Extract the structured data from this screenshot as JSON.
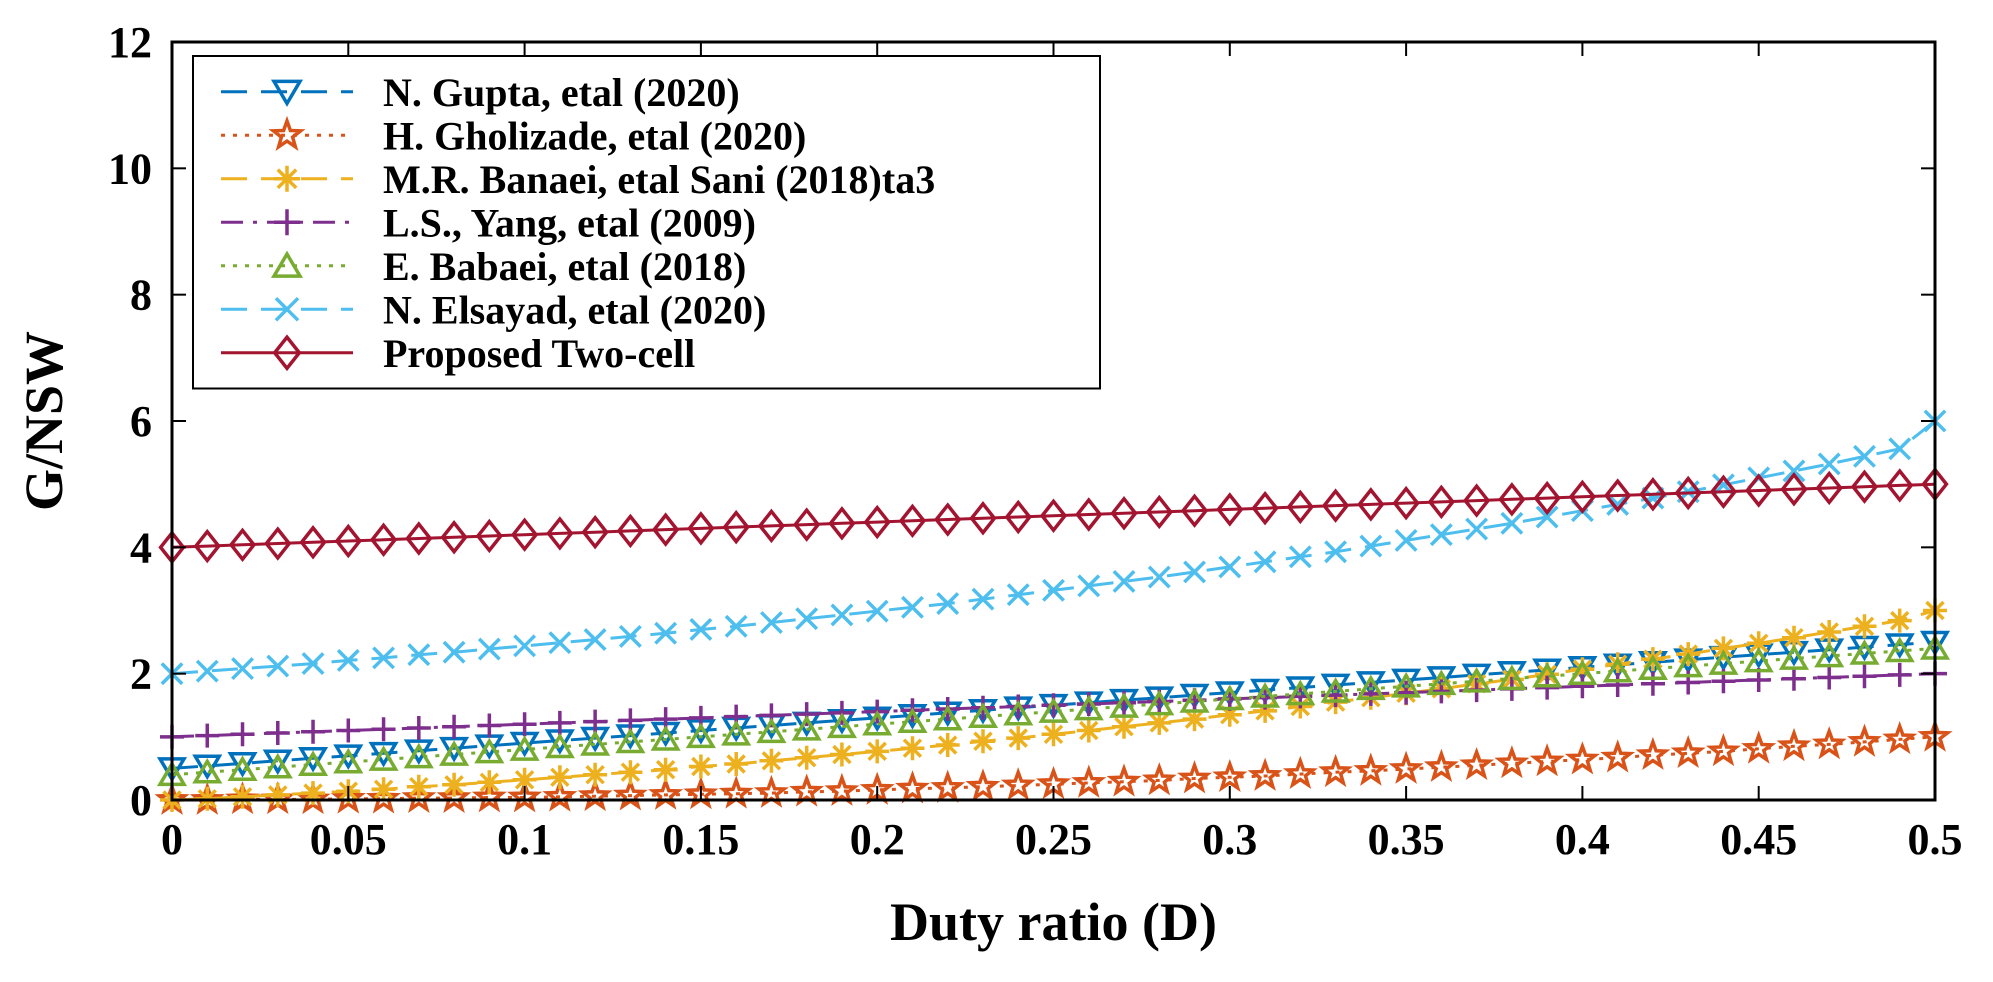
{
  "chart_data": {
    "type": "line",
    "title": "",
    "xlabel": "Duty ratio (D)",
    "ylabel": "G/NSW",
    "xlim": [
      0,
      0.5
    ],
    "ylim": [
      0,
      12
    ],
    "x_ticks": [
      "0",
      "0.05",
      "0.1",
      "0.15",
      "0.2",
      "0.25",
      "0.3",
      "0.35",
      "0.4",
      "0.45",
      "0.5"
    ],
    "y_ticks": [
      "0",
      "2",
      "4",
      "6",
      "8",
      "10",
      "12"
    ],
    "grid": false,
    "legend_position": "top-left",
    "x": [
      0,
      0.01,
      0.02,
      0.03,
      0.04,
      0.05,
      0.06,
      0.07,
      0.08,
      0.09,
      0.1,
      0.11,
      0.12,
      0.13,
      0.14,
      0.15,
      0.16,
      0.17,
      0.18,
      0.19,
      0.2,
      0.21,
      0.22,
      0.23,
      0.24,
      0.25,
      0.26,
      0.27,
      0.28,
      0.29,
      0.3,
      0.31,
      0.32,
      0.33,
      0.34,
      0.35,
      0.36,
      0.37,
      0.38,
      0.39,
      0.4,
      0.41,
      0.42,
      0.43,
      0.44,
      0.45,
      0.46,
      0.47,
      0.48,
      0.49,
      0.5
    ],
    "series": [
      {
        "name": "N. Gupta, etal (2020)",
        "color": "#0072BD",
        "linestyle": "dashed",
        "marker": "triangle-down",
        "values": [
          0.5,
          0.54,
          0.58,
          0.62,
          0.66,
          0.7,
          0.74,
          0.78,
          0.82,
          0.86,
          0.9,
          0.94,
          0.98,
          1.02,
          1.06,
          1.1,
          1.14,
          1.18,
          1.22,
          1.26,
          1.3,
          1.34,
          1.38,
          1.42,
          1.46,
          1.5,
          1.54,
          1.58,
          1.62,
          1.66,
          1.7,
          1.74,
          1.78,
          1.82,
          1.86,
          1.9,
          1.94,
          1.98,
          2.02,
          2.06,
          2.1,
          2.14,
          2.18,
          2.22,
          2.26,
          2.3,
          2.34,
          2.38,
          2.42,
          2.46,
          2.5
        ]
      },
      {
        "name": "H. Gholizade, etal (2020)",
        "color": "#D95319",
        "linestyle": "dotted",
        "marker": "star",
        "values": [
          0,
          0,
          0.01,
          0.01,
          0.01,
          0.02,
          0.02,
          0.03,
          0.03,
          0.04,
          0.04,
          0.05,
          0.06,
          0.07,
          0.08,
          0.09,
          0.1,
          0.11,
          0.13,
          0.14,
          0.16,
          0.18,
          0.19,
          0.21,
          0.23,
          0.25,
          0.27,
          0.29,
          0.31,
          0.34,
          0.36,
          0.38,
          0.41,
          0.44,
          0.46,
          0.49,
          0.52,
          0.55,
          0.58,
          0.61,
          0.64,
          0.67,
          0.71,
          0.74,
          0.77,
          0.81,
          0.85,
          0.88,
          0.92,
          0.96,
          1.0
        ]
      },
      {
        "name": "M.R. Banaei, etal Sani (2018)ta3",
        "color": "#EDB120",
        "linestyle": "dashed",
        "marker": "asterisk",
        "values": [
          0.0,
          0.02,
          0.05,
          0.08,
          0.11,
          0.14,
          0.17,
          0.21,
          0.24,
          0.28,
          0.32,
          0.36,
          0.4,
          0.44,
          0.48,
          0.53,
          0.57,
          0.62,
          0.67,
          0.72,
          0.77,
          0.82,
          0.87,
          0.93,
          0.98,
          1.04,
          1.1,
          1.16,
          1.22,
          1.28,
          1.35,
          1.41,
          1.48,
          1.55,
          1.62,
          1.69,
          1.76,
          1.84,
          1.91,
          1.99,
          2.07,
          2.15,
          2.23,
          2.31,
          2.4,
          2.48,
          2.57,
          2.66,
          2.75,
          2.84,
          3.0
        ]
      },
      {
        "name": "L.S., Yang, etal (2009)",
        "color": "#7E2F8E",
        "linestyle": "dashdot",
        "marker": "plus",
        "values": [
          1.0,
          1.02,
          1.04,
          1.06,
          1.08,
          1.1,
          1.12,
          1.14,
          1.16,
          1.18,
          1.2,
          1.22,
          1.24,
          1.26,
          1.28,
          1.3,
          1.32,
          1.34,
          1.36,
          1.38,
          1.4,
          1.42,
          1.44,
          1.46,
          1.48,
          1.5,
          1.52,
          1.54,
          1.56,
          1.58,
          1.6,
          1.62,
          1.64,
          1.66,
          1.68,
          1.7,
          1.72,
          1.74,
          1.76,
          1.78,
          1.8,
          1.82,
          1.84,
          1.86,
          1.88,
          1.9,
          1.92,
          1.94,
          1.96,
          1.98,
          2.0
        ]
      },
      {
        "name": "E. Babaei, etal (2018)",
        "color": "#77AC30",
        "linestyle": "dotted",
        "marker": "triangle-up",
        "values": [
          0.4,
          0.44,
          0.48,
          0.52,
          0.56,
          0.6,
          0.64,
          0.68,
          0.72,
          0.76,
          0.8,
          0.84,
          0.88,
          0.92,
          0.96,
          1.0,
          1.04,
          1.08,
          1.12,
          1.16,
          1.2,
          1.24,
          1.28,
          1.32,
          1.36,
          1.4,
          1.44,
          1.48,
          1.52,
          1.56,
          1.6,
          1.64,
          1.68,
          1.72,
          1.76,
          1.8,
          1.84,
          1.88,
          1.92,
          1.96,
          2.0,
          2.04,
          2.08,
          2.12,
          2.16,
          2.2,
          2.24,
          2.28,
          2.32,
          2.36,
          2.4
        ]
      },
      {
        "name": "N. Elsayad, etal (2020)",
        "color": "#4DBEEE",
        "linestyle": "dashed",
        "marker": "x",
        "values": [
          2.0,
          2.04,
          2.08,
          2.12,
          2.16,
          2.21,
          2.25,
          2.3,
          2.34,
          2.39,
          2.44,
          2.49,
          2.54,
          2.59,
          2.64,
          2.7,
          2.75,
          2.81,
          2.87,
          2.93,
          2.99,
          3.05,
          3.11,
          3.18,
          3.25,
          3.32,
          3.39,
          3.46,
          3.53,
          3.61,
          3.69,
          3.77,
          3.85,
          3.93,
          4.02,
          4.11,
          4.2,
          4.29,
          4.38,
          4.48,
          4.58,
          4.68,
          4.78,
          4.88,
          4.99,
          5.1,
          5.21,
          5.32,
          5.44,
          5.56,
          6.0
        ]
      },
      {
        "name": "Proposed Two-cell",
        "color": "#A2142F",
        "linestyle": "solid",
        "marker": "diamond",
        "values": [
          4.0,
          4.02,
          4.04,
          4.06,
          4.08,
          4.1,
          4.12,
          4.14,
          4.16,
          4.18,
          4.2,
          4.22,
          4.24,
          4.26,
          4.28,
          4.3,
          4.32,
          4.34,
          4.36,
          4.38,
          4.4,
          4.42,
          4.44,
          4.46,
          4.48,
          4.5,
          4.52,
          4.54,
          4.56,
          4.58,
          4.6,
          4.62,
          4.64,
          4.66,
          4.68,
          4.7,
          4.72,
          4.74,
          4.76,
          4.78,
          4.8,
          4.82,
          4.84,
          4.86,
          4.88,
          4.9,
          4.92,
          4.94,
          4.96,
          4.98,
          5.0
        ]
      }
    ]
  }
}
